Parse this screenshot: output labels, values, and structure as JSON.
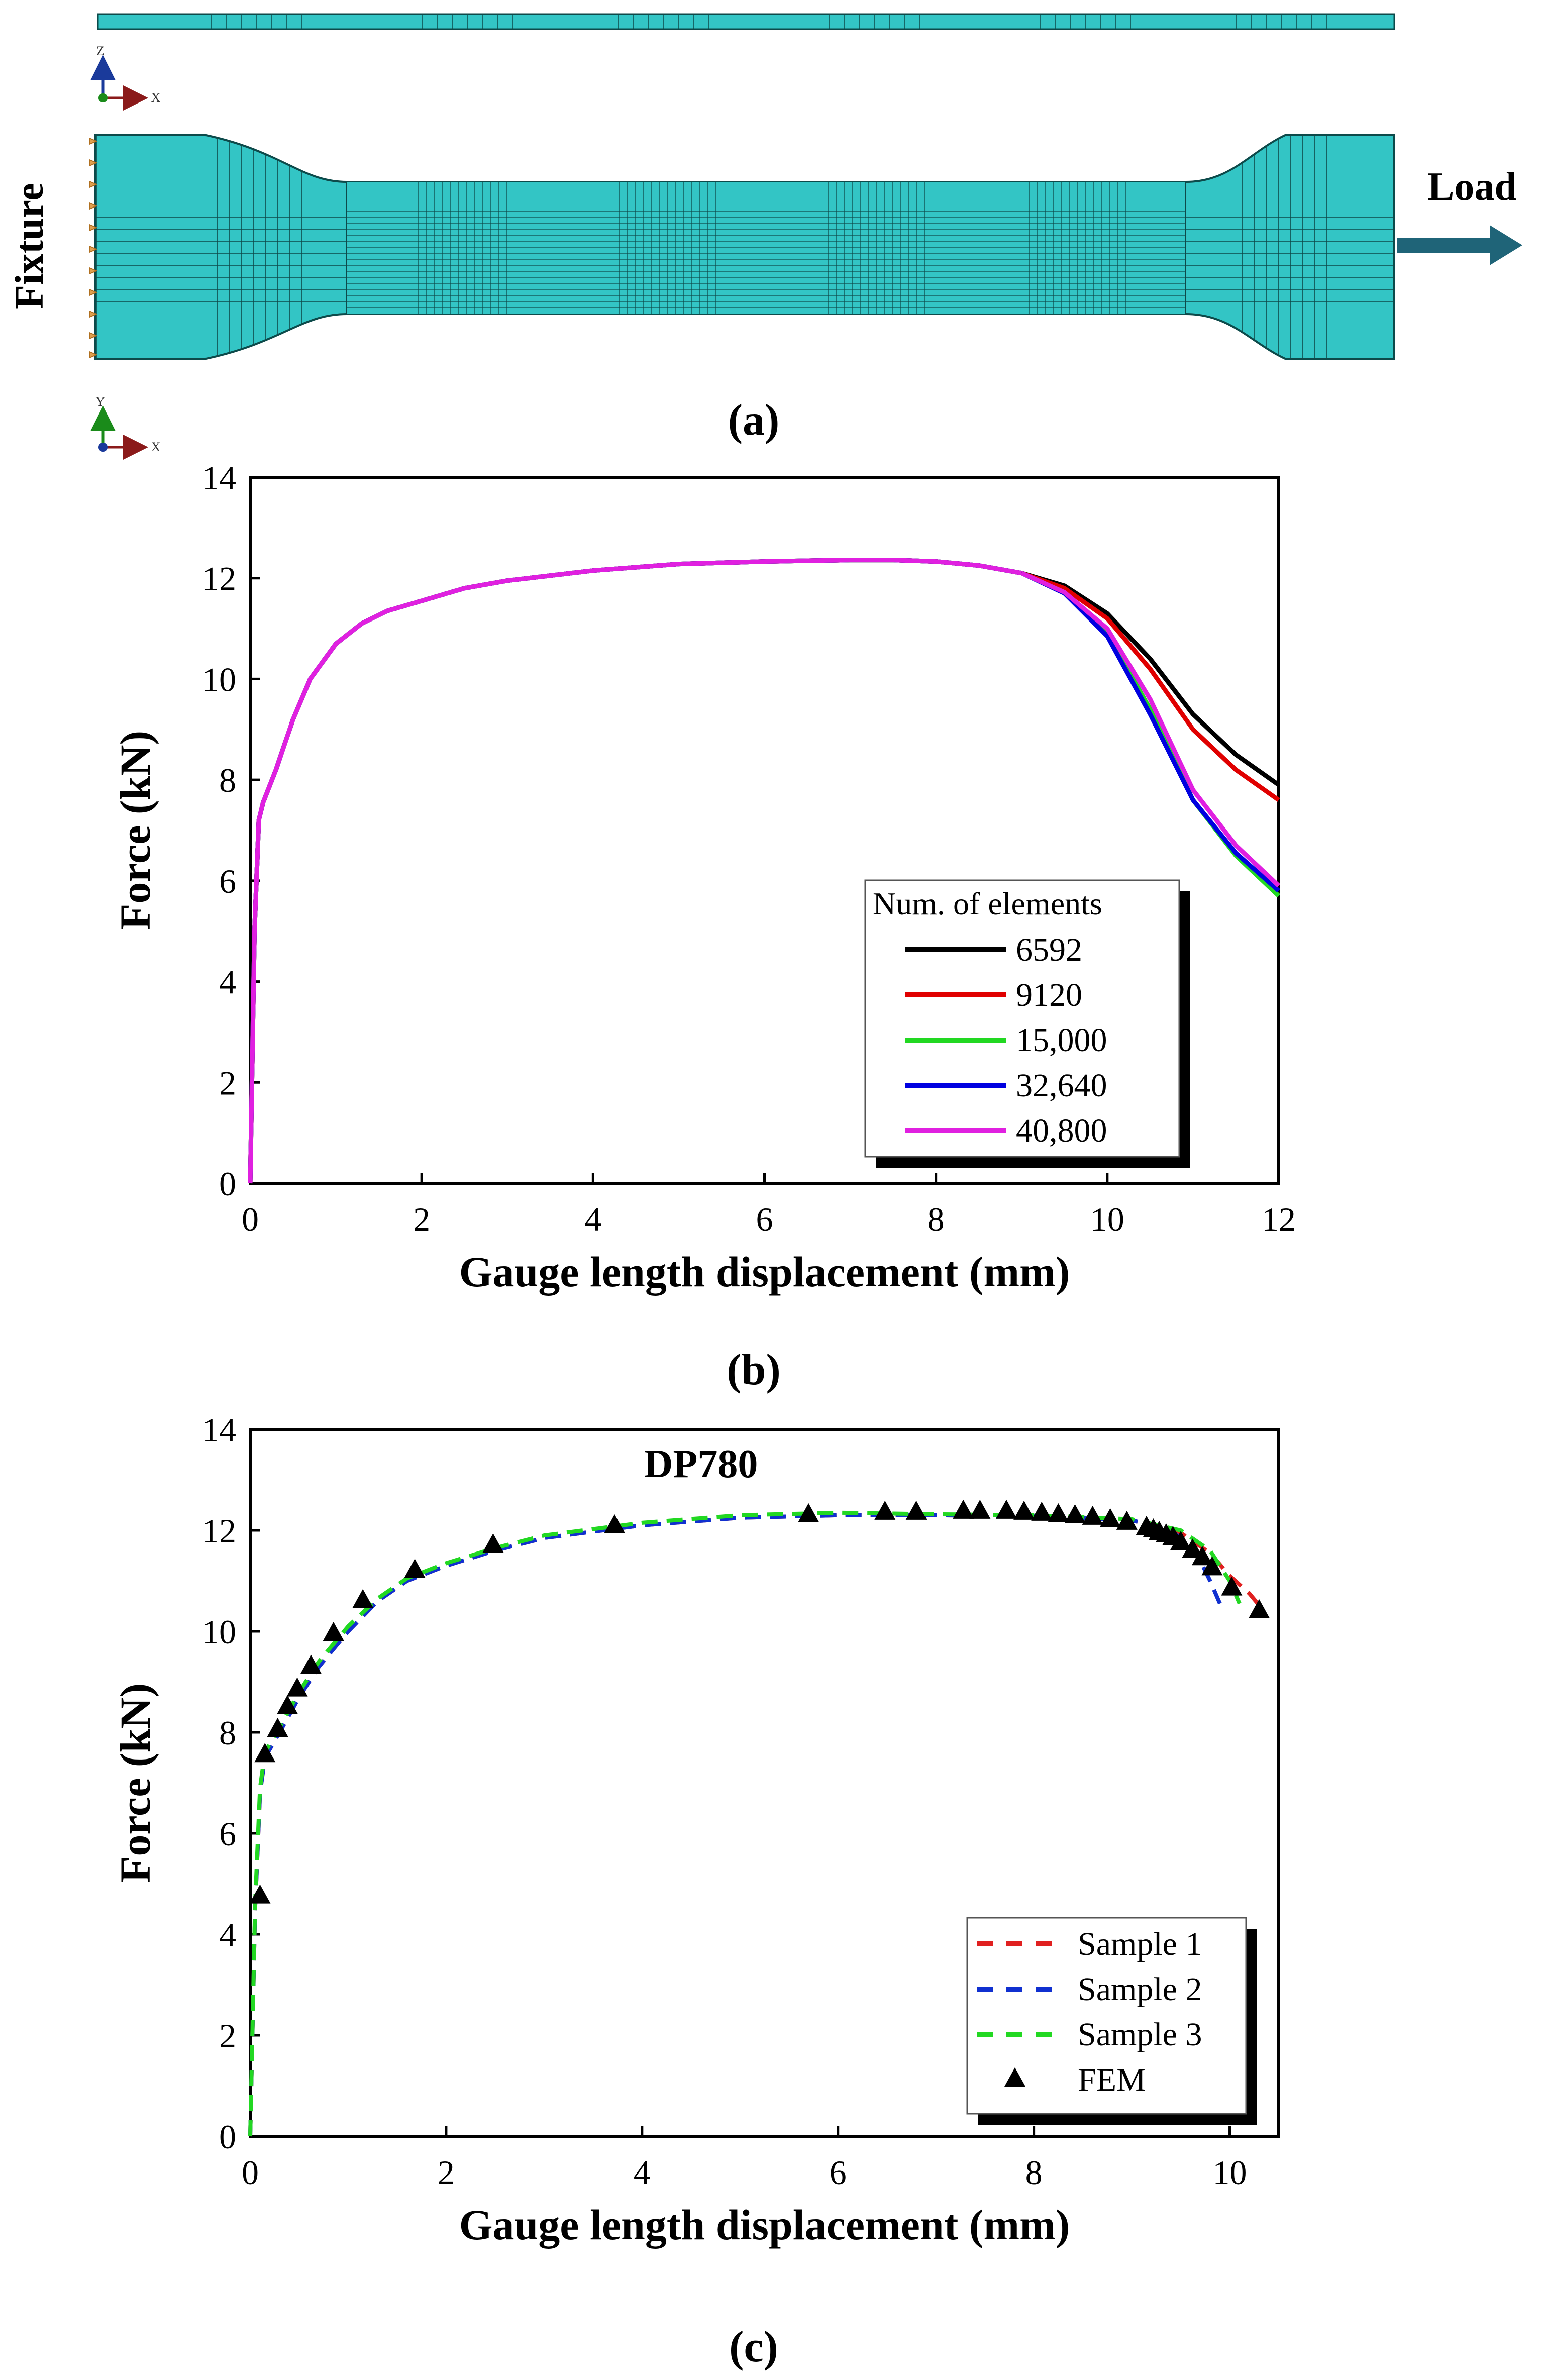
{
  "panel_a": {
    "caption": "(a)",
    "fixture_label": "Fixture",
    "load_label": "Load",
    "top_axes": {
      "v": "Z",
      "h": "X"
    },
    "bottom_axes": {
      "v": "Y",
      "h": "X"
    },
    "colors": {
      "mesh": "#33c5c5",
      "mesh_line": "#0d4a4a",
      "arrow": "#1f6478",
      "fixture": "#e0a050"
    }
  },
  "chart_data": [
    {
      "type": "line",
      "caption": "(b)",
      "title": "",
      "xlabel": "Gauge length displacement (mm)",
      "ylabel": "Force (kN)",
      "xlim": [
        0,
        12
      ],
      "ylim": [
        0,
        14
      ],
      "xticks": [
        0,
        2,
        4,
        6,
        8,
        10,
        12
      ],
      "yticks": [
        0,
        2,
        4,
        6,
        8,
        10,
        12,
        14
      ],
      "legend": {
        "title": "Num. of elements",
        "position": "bottom-right"
      },
      "common_curve": {
        "x": [
          0,
          0.05,
          0.1,
          0.15,
          0.3,
          0.5,
          0.7,
          1.0,
          1.3,
          1.6,
          2.0,
          2.5,
          3.0,
          4.0,
          5.0,
          6.0,
          7.0,
          7.5,
          8.0,
          8.5,
          9.0
        ],
        "y": [
          0,
          5.0,
          7.2,
          7.55,
          8.2,
          9.2,
          10.0,
          10.7,
          11.1,
          11.35,
          11.55,
          11.8,
          11.95,
          12.15,
          12.28,
          12.33,
          12.36,
          12.36,
          12.33,
          12.25,
          12.1
        ]
      },
      "series": [
        {
          "name": "6592",
          "color": "#000000",
          "x": [
            9.0,
            9.5,
            10.0,
            10.5,
            11.0,
            11.5,
            12.0
          ],
          "y": [
            12.1,
            11.85,
            11.3,
            10.4,
            9.3,
            8.5,
            7.9
          ]
        },
        {
          "name": "9120",
          "color": "#e00000",
          "x": [
            9.0,
            9.5,
            10.0,
            10.5,
            11.0,
            11.5,
            12.0
          ],
          "y": [
            12.1,
            11.8,
            11.2,
            10.2,
            9.0,
            8.2,
            7.6
          ]
        },
        {
          "name": "15,000",
          "color": "#22d822",
          "x": [
            9.0,
            9.5,
            10.0,
            10.5,
            11.0,
            11.5,
            12.0
          ],
          "y": [
            12.1,
            11.7,
            10.9,
            9.4,
            7.6,
            6.5,
            5.7
          ]
        },
        {
          "name": "32,640",
          "color": "#0000e0",
          "x": [
            9.0,
            9.5,
            10.0,
            10.5,
            11.0,
            11.5,
            12.0
          ],
          "y": [
            12.1,
            11.7,
            10.85,
            9.3,
            7.6,
            6.55,
            5.8
          ]
        },
        {
          "name": "40,800",
          "color": "#e020e0",
          "x": [
            9.0,
            9.5,
            10.0,
            10.5,
            11.0,
            11.5,
            12.0
          ],
          "y": [
            12.1,
            11.72,
            11.0,
            9.6,
            7.8,
            6.7,
            5.9
          ]
        }
      ]
    },
    {
      "type": "line",
      "caption": "(c)",
      "title": "DP780",
      "xlabel": "Gauge length displacement (mm)",
      "ylabel": "Force (kN)",
      "xlim": [
        0,
        10.5
      ],
      "ylim": [
        0,
        14
      ],
      "xticks": [
        0,
        2,
        4,
        6,
        8,
        10
      ],
      "yticks": [
        0,
        2,
        4,
        6,
        8,
        10,
        12,
        14
      ],
      "legend": {
        "position": "bottom-right"
      },
      "series": [
        {
          "name": "Sample 1",
          "color": "#e02020",
          "style": "dashed",
          "x": [
            0,
            0.05,
            0.1,
            0.15,
            0.3,
            0.5,
            0.7,
            1.0,
            1.3,
            1.6,
            2.0,
            2.5,
            3.0,
            4.0,
            5.0,
            6.0,
            7.0,
            8.0,
            9.0,
            9.5,
            9.8,
            10.0,
            10.2,
            10.35
          ],
          "y": [
            0,
            4.5,
            6.8,
            7.5,
            8.0,
            8.7,
            9.3,
            10.0,
            10.6,
            11.0,
            11.3,
            11.6,
            11.85,
            12.1,
            12.25,
            12.3,
            12.3,
            12.28,
            12.2,
            11.95,
            11.55,
            11.1,
            10.75,
            10.4
          ]
        },
        {
          "name": "Sample 2",
          "color": "#1030d0",
          "style": "dashed",
          "x": [
            0,
            0.05,
            0.1,
            0.15,
            0.3,
            0.5,
            0.7,
            1.0,
            1.3,
            1.6,
            2.0,
            2.5,
            3.0,
            4.0,
            5.0,
            6.0,
            7.0,
            8.0,
            9.0,
            9.4,
            9.65,
            9.8,
            9.9
          ],
          "y": [
            0,
            4.5,
            6.8,
            7.5,
            8.0,
            8.7,
            9.3,
            10.0,
            10.6,
            11.0,
            11.3,
            11.6,
            11.85,
            12.1,
            12.25,
            12.3,
            12.3,
            12.28,
            12.2,
            12.0,
            11.6,
            11.0,
            10.55
          ]
        },
        {
          "name": "Sample 3",
          "color": "#22d822",
          "style": "dashed",
          "x": [
            0,
            0.05,
            0.1,
            0.15,
            0.3,
            0.5,
            0.7,
            1.0,
            1.3,
            1.6,
            2.0,
            2.5,
            3.0,
            4.0,
            5.0,
            6.0,
            7.0,
            8.0,
            9.0,
            9.5,
            9.8,
            10.0,
            10.1
          ],
          "y": [
            0,
            4.6,
            6.9,
            7.6,
            8.1,
            8.8,
            9.4,
            10.1,
            10.65,
            11.05,
            11.35,
            11.65,
            11.9,
            12.15,
            12.3,
            12.35,
            12.32,
            12.3,
            12.22,
            12.0,
            11.6,
            11.0,
            10.55
          ]
        },
        {
          "name": "FEM",
          "color": "#000000",
          "style": "marker",
          "x": [
            0.1,
            0.15,
            0.28,
            0.38,
            0.48,
            0.62,
            0.85,
            1.15,
            1.68,
            2.48,
            3.72,
            5.7,
            6.48,
            6.8,
            7.28,
            7.45,
            7.72,
            7.9,
            8.08,
            8.25,
            8.42,
            8.6,
            8.78,
            8.95,
            9.15,
            9.22,
            9.28,
            9.35,
            9.42,
            9.5,
            9.62,
            9.72,
            9.82,
            10.02,
            10.3
          ],
          "y": [
            4.75,
            7.55,
            8.05,
            8.5,
            8.85,
            9.3,
            9.95,
            10.6,
            11.2,
            11.7,
            12.08,
            12.3,
            12.35,
            12.35,
            12.37,
            12.37,
            12.37,
            12.35,
            12.33,
            12.3,
            12.28,
            12.25,
            12.2,
            12.15,
            12.05,
            12.0,
            11.95,
            11.9,
            11.85,
            11.75,
            11.6,
            11.45,
            11.25,
            10.85,
            10.4
          ]
        }
      ]
    }
  ]
}
